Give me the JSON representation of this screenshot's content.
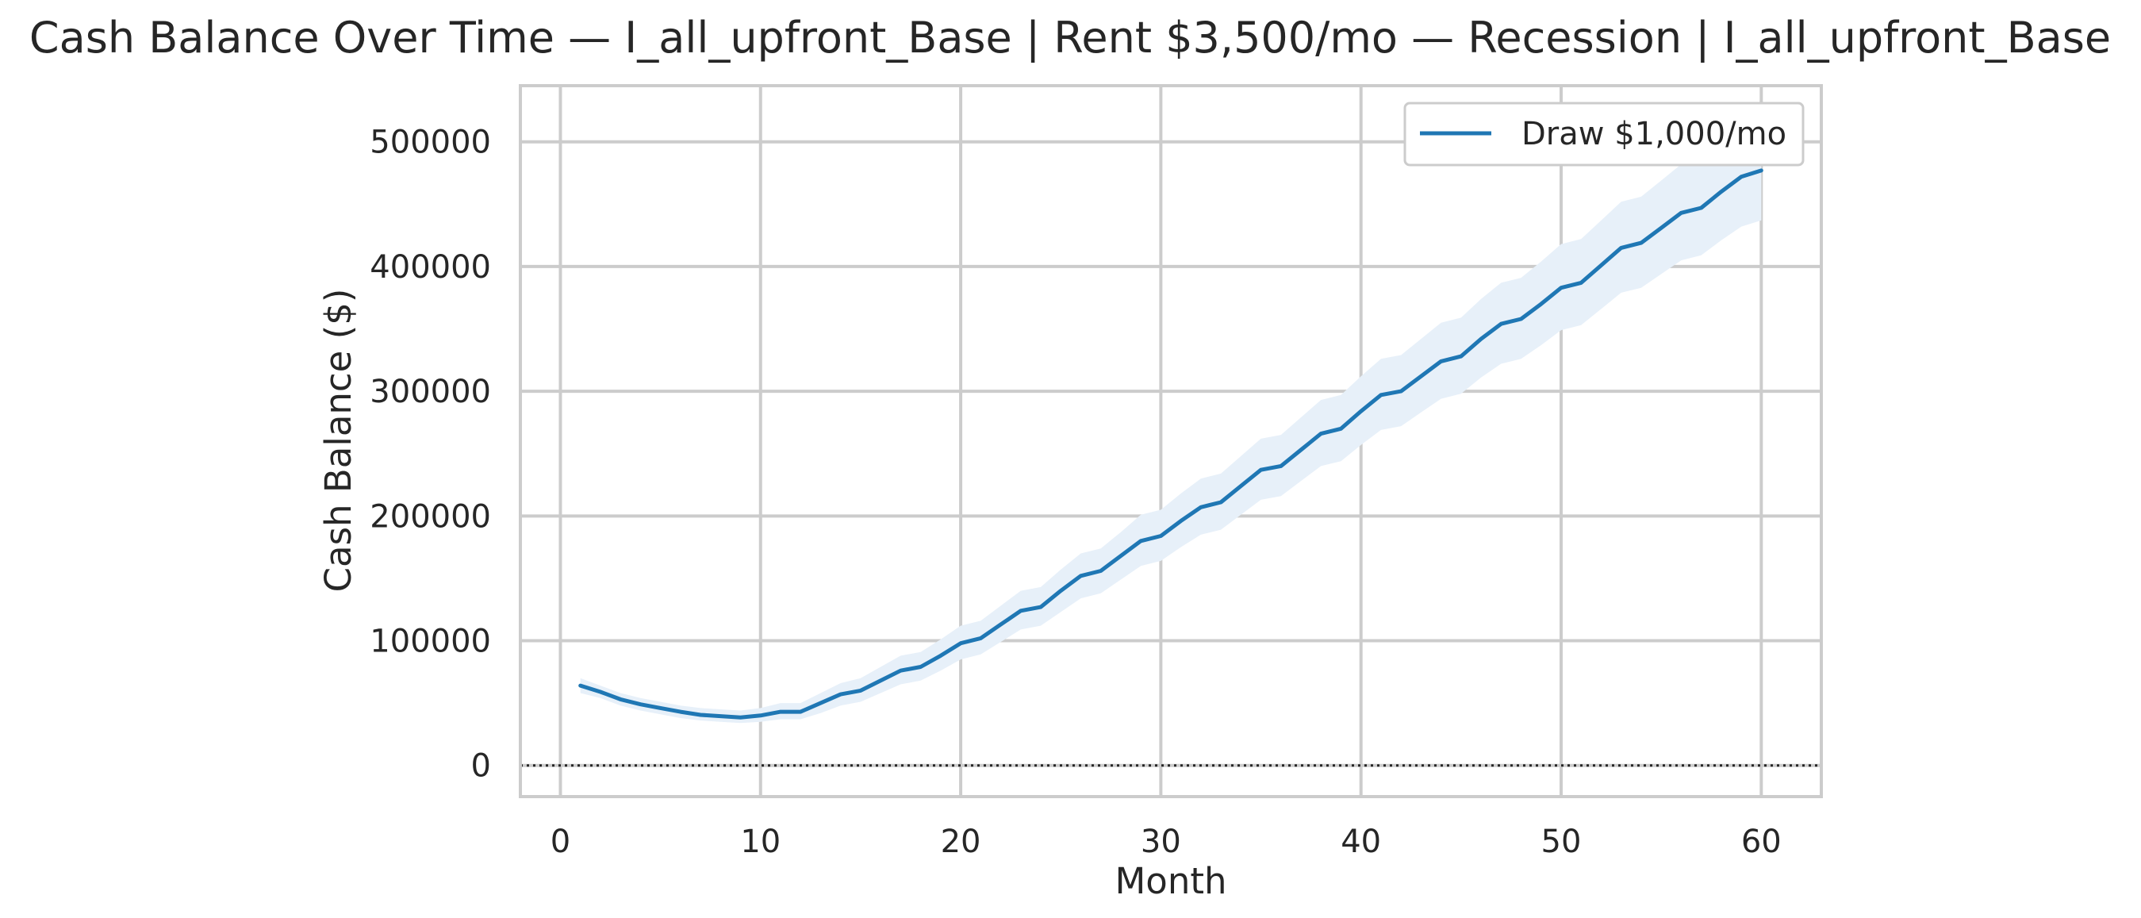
{
  "chart_data": {
    "type": "line",
    "title": "Cash Balance Over Time — I_all_upfront_Base | Rent $3,500/mo — Recession | I_all_upfront_Base",
    "xlabel": "Month",
    "ylabel": "Cash Balance ($)",
    "xlim": [
      -2,
      63
    ],
    "ylim": [
      -25000,
      545000
    ],
    "xticks": [
      0,
      10,
      20,
      30,
      40,
      50,
      60
    ],
    "yticks": [
      0,
      100000,
      200000,
      300000,
      400000,
      500000
    ],
    "xtick_labels": [
      "0",
      "10",
      "20",
      "30",
      "40",
      "50",
      "60"
    ],
    "ytick_labels": [
      "0",
      "100000",
      "200000",
      "300000",
      "400000",
      "500000"
    ],
    "grid": true,
    "legend": {
      "position": "top-right"
    },
    "reference_line": {
      "y": 0,
      "style": "dotted",
      "color": "#262626"
    },
    "series": [
      {
        "name": "Draw $1,000/mo",
        "color": "#1f77b4",
        "band_color": "#e7f0f9",
        "x": [
          1,
          2,
          3,
          4,
          5,
          6,
          7,
          8,
          9,
          10,
          11,
          12,
          13,
          14,
          15,
          16,
          17,
          18,
          19,
          20,
          21,
          22,
          23,
          24,
          25,
          26,
          27,
          28,
          29,
          30,
          31,
          32,
          33,
          34,
          35,
          36,
          37,
          38,
          39,
          40,
          41,
          42,
          43,
          44,
          45,
          46,
          47,
          48,
          49,
          50,
          51,
          52,
          53,
          54,
          55,
          56,
          57,
          58,
          59,
          60
        ],
        "y": [
          64000,
          59000,
          53000,
          49000,
          46000,
          43000,
          40500,
          39500,
          38500,
          40000,
          43000,
          43000,
          50000,
          57000,
          60000,
          68000,
          76000,
          79000,
          88000,
          98000,
          102000,
          113000,
          124000,
          127000,
          140000,
          152000,
          156000,
          168000,
          180000,
          184000,
          196000,
          207000,
          211000,
          224000,
          237000,
          240000,
          253000,
          266000,
          270000,
          284000,
          297000,
          300000,
          312000,
          324000,
          328000,
          342000,
          354000,
          358000,
          370000,
          383000,
          387000,
          401000,
          415000,
          419000,
          431000,
          443000,
          447000,
          460000,
          472000,
          477000
        ],
        "lower": [
          58000,
          54000,
          48000,
          44000,
          41000,
          38000,
          36000,
          35000,
          34000,
          35000,
          37000,
          37000,
          42000,
          48000,
          51000,
          58000,
          65000,
          68000,
          76000,
          85000,
          89000,
          99000,
          109000,
          112000,
          123000,
          134000,
          138000,
          149000,
          160000,
          164000,
          175000,
          185000,
          189000,
          201000,
          213000,
          216000,
          228000,
          240000,
          244000,
          257000,
          269000,
          272000,
          283000,
          294000,
          298000,
          311000,
          322000,
          326000,
          337000,
          349000,
          353000,
          366000,
          379000,
          383000,
          394000,
          405000,
          409000,
          421000,
          432000,
          437000
        ],
        "upper": [
          70000,
          64000,
          58000,
          54000,
          51000,
          48000,
          46000,
          45000,
          44000,
          46000,
          50000,
          50000,
          58000,
          66000,
          70000,
          79000,
          88000,
          91000,
          101000,
          112000,
          116000,
          128000,
          140000,
          143000,
          157000,
          170000,
          174000,
          187000,
          201000,
          205000,
          218000,
          230000,
          234000,
          248000,
          262000,
          265000,
          279000,
          293000,
          297000,
          312000,
          326000,
          329000,
          342000,
          355000,
          359000,
          374000,
          387000,
          391000,
          404000,
          418000,
          422000,
          437000,
          452000,
          456000,
          469000,
          482000,
          486000,
          500000,
          513000,
          518000
        ]
      }
    ]
  }
}
